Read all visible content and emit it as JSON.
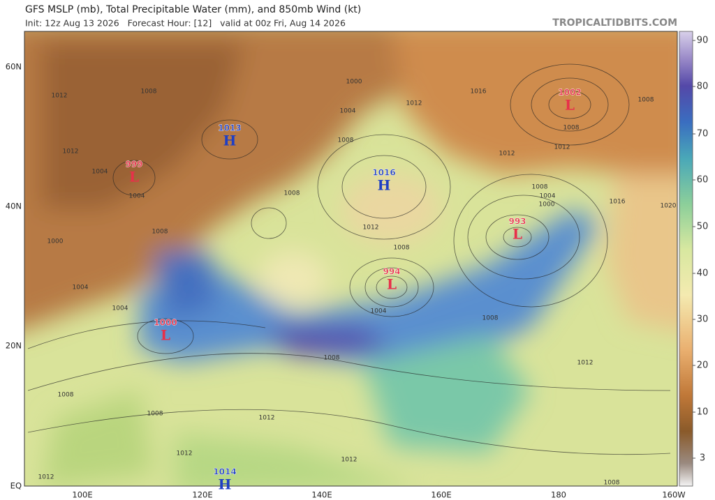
{
  "header": {
    "title": "GFS MSLP (mb), Total Precipitable Water (mm), and 850mb Wind (kt)",
    "subtitle": "Init: 12z Aug 13 2026   Forecast Hour: [12]   valid at 00z Fri, Aug 14 2026",
    "source": "TROPICALTIDBITS.COM"
  },
  "map": {
    "latitude_labels": [
      "60N",
      "40N",
      "20N",
      "EQ"
    ],
    "longitude_labels": [
      "100E",
      "120E",
      "140E",
      "160E",
      "180",
      "160W"
    ],
    "pressure_centers": [
      {
        "value": "1013",
        "letter": "H"
      },
      {
        "value": "999",
        "letter": "L"
      },
      {
        "value": "1016",
        "letter": "H"
      },
      {
        "value": "1002",
        "letter": "L"
      },
      {
        "value": "993",
        "letter": "L"
      },
      {
        "value": "994",
        "letter": "L"
      },
      {
        "value": "1000",
        "letter": "L"
      },
      {
        "value": "1014",
        "letter": "H"
      }
    ],
    "isobar_labels": [
      "1012",
      "1008",
      "1012",
      "1004",
      "1004",
      "1008",
      "1000",
      "1004",
      "1004",
      "1008",
      "1008",
      "1012",
      "1012",
      "1012",
      "1008",
      "1004",
      "1008",
      "1012",
      "1008",
      "1004",
      "1000",
      "1008",
      "1012",
      "1016",
      "1008",
      "1012",
      "1012",
      "1008",
      "1004",
      "1000",
      "1016",
      "1020",
      "1008",
      "1012",
      "1012",
      "1008",
      "1008"
    ]
  },
  "colorbar": {
    "labels": [
      90,
      80,
      70,
      60,
      50,
      40,
      30,
      20,
      10,
      3
    ]
  }
}
